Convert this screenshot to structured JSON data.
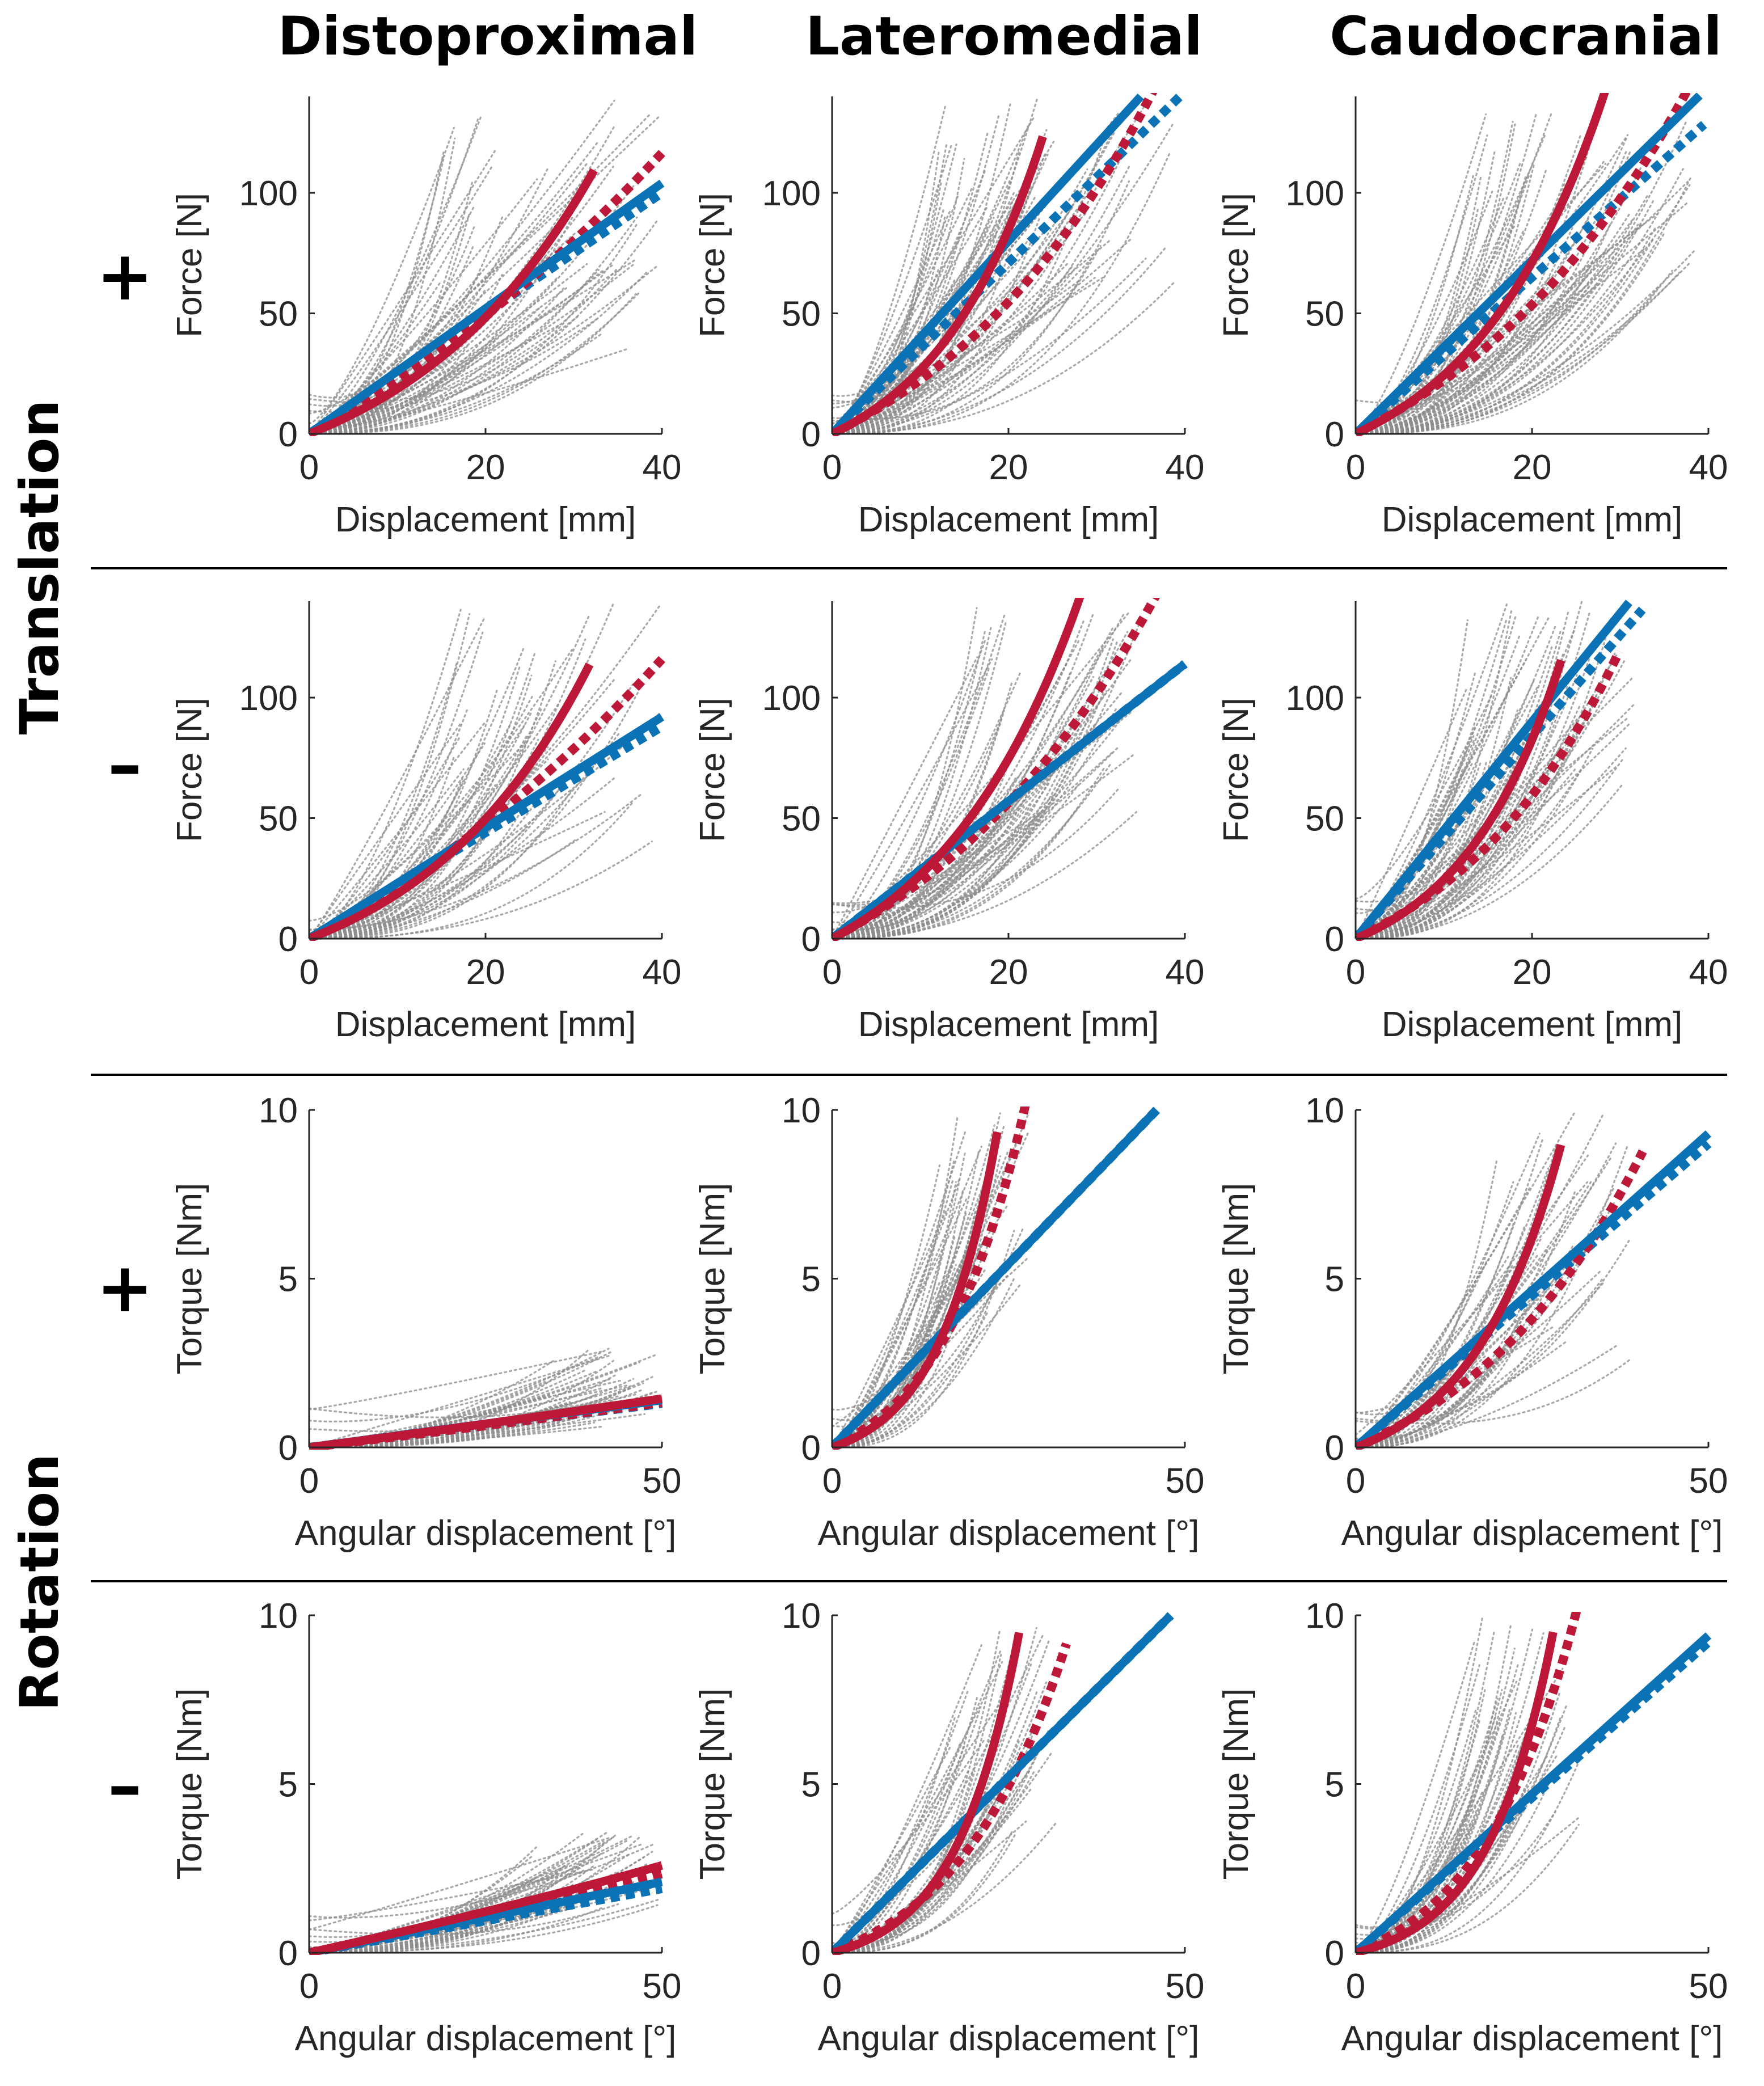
{
  "column_titles": [
    "Distoproximal",
    "Lateromedial",
    "Caudocranial"
  ],
  "row_group_titles": {
    "translation": "Translation",
    "rotation": "Rotation"
  },
  "row_signs": [
    "+",
    "–",
    "+",
    "–"
  ],
  "colors": {
    "samples": "#8c8c8c",
    "linear_fit": "#0a72b5",
    "exponential_fit": "#be1838",
    "axis": "#262626",
    "divider": "#000000"
  },
  "chart_data": [
    {
      "type": "line",
      "panel": "translation-plus-distoproximal",
      "xlabel": "Displacement [mm]",
      "ylabel": "Force [N]",
      "xlim": [
        0,
        40
      ],
      "ylim": [
        0,
        140
      ],
      "xticks": [
        0,
        20,
        40
      ],
      "yticks": [
        0,
        50,
        100
      ],
      "x_end": 40,
      "linear": {
        "solid": {
          "slope": 2.6,
          "x_max": 40
        },
        "dashed": {
          "slope": 2.5,
          "x_max": 40
        }
      },
      "exponential": {
        "solid": {
          "a": 32,
          "b": 0.046,
          "x_max": 32.3
        },
        "dashed": {
          "a": 130,
          "b": 0.016,
          "x_max": 40
        }
      },
      "samples": {
        "count": 60,
        "x_min": 14,
        "x_max": 40,
        "y_min": 35,
        "y_max": 140
      }
    },
    {
      "type": "line",
      "panel": "translation-plus-lateromedial",
      "xlabel": "Displacement [mm]",
      "ylabel": "Force [N]",
      "xlim": [
        0,
        40
      ],
      "ylim": [
        0,
        140
      ],
      "xticks": [
        0,
        20,
        40
      ],
      "yticks": [
        0,
        50,
        100
      ],
      "x_end": 40,
      "linear": {
        "solid": {
          "slope": 4.0,
          "x_max": 35
        },
        "dashed": {
          "slope": 3.55,
          "x_max": 39.5
        }
      },
      "exponential": {
        "solid": {
          "a": 22,
          "b": 0.079,
          "x_max": 23.9
        },
        "dashed": {
          "a": 50,
          "b": 0.037,
          "x_max": 37.3
        }
      },
      "samples": {
        "count": 70,
        "x_min": 12,
        "x_max": 39,
        "y_min": 60,
        "y_max": 140
      }
    },
    {
      "type": "line",
      "panel": "translation-plus-caudocranial",
      "xlabel": "Displacement [mm]",
      "ylabel": "Force [N]",
      "xlim": [
        0,
        40
      ],
      "ylim": [
        0,
        140
      ],
      "xticks": [
        0,
        20,
        40
      ],
      "yticks": [
        0,
        50,
        100
      ],
      "x_end": 40,
      "linear": {
        "solid": {
          "slope": 3.6,
          "x_max": 39
        },
        "dashed": {
          "slope": 3.25,
          "x_max": 39.5
        }
      },
      "exponential": {
        "solid": {
          "a": 26,
          "b": 0.066,
          "x_max": 29.9
        },
        "dashed": {
          "a": 55,
          "b": 0.034,
          "x_max": 38.9
        }
      },
      "samples": {
        "count": 70,
        "x_min": 13,
        "x_max": 39,
        "y_min": 60,
        "y_max": 140
      }
    },
    {
      "type": "line",
      "panel": "translation-minus-distoproximal",
      "xlabel": "Displacement [mm]",
      "ylabel": "Force [N]",
      "xlim": [
        0,
        40
      ],
      "ylim": [
        0,
        140
      ],
      "xticks": [
        0,
        20,
        40
      ],
      "yticks": [
        0,
        50,
        100
      ],
      "x_end": 40,
      "linear": {
        "solid": {
          "slope": 2.3,
          "x_max": 40
        },
        "dashed": {
          "slope": 2.2,
          "x_max": 40
        }
      },
      "exponential": {
        "solid": {
          "a": 28,
          "b": 0.051,
          "x_max": 31.8
        },
        "dashed": {
          "a": 110,
          "b": 0.018,
          "x_max": 40
        }
      },
      "samples": {
        "count": 55,
        "x_min": 16,
        "x_max": 40,
        "y_min": 40,
        "y_max": 140
      }
    },
    {
      "type": "line",
      "panel": "translation-minus-lateromedial",
      "xlabel": "Displacement [mm]",
      "ylabel": "Force [N]",
      "xlim": [
        0,
        40
      ],
      "ylim": [
        0,
        140
      ],
      "xticks": [
        0,
        20,
        40
      ],
      "yticks": [
        0,
        50,
        100
      ],
      "x_end": 40,
      "linear": {
        "solid": {
          "slope": 2.85,
          "x_max": 40
        },
        "dashed": {
          "slope": 2.85,
          "x_max": 40
        }
      },
      "exponential": {
        "solid": {
          "a": 32,
          "b": 0.0602,
          "x_max": 30.8
        },
        "dashed": {
          "a": 60,
          "b": 0.0331,
          "x_max": 37.3
        }
      },
      "samples": {
        "count": 60,
        "x_min": 16,
        "x_max": 35,
        "y_min": 50,
        "y_max": 140
      }
    },
    {
      "type": "line",
      "panel": "translation-minus-caudocranial",
      "xlabel": "Displacement [mm]",
      "ylabel": "Force [N]",
      "xlim": [
        0,
        40
      ],
      "ylim": [
        0,
        140
      ],
      "xticks": [
        0,
        20,
        40
      ],
      "yticks": [
        0,
        50,
        100
      ],
      "x_end": 40,
      "linear": {
        "solid": {
          "slope": 4.5,
          "x_max": 31
        },
        "dashed": {
          "slope": 4.2,
          "x_max": 32.5
        }
      },
      "exponential": {
        "solid": {
          "a": 18,
          "b": 0.086,
          "x_max": 23.3
        },
        "dashed": {
          "a": 35,
          "b": 0.0496,
          "x_max": 29.9
        }
      },
      "samples": {
        "count": 65,
        "x_min": 12,
        "x_max": 32,
        "y_min": 60,
        "y_max": 140
      }
    },
    {
      "type": "line",
      "panel": "rotation-plus-distoproximal",
      "xlabel": "Angular displacement [°]",
      "ylabel": "Torque [Nm]",
      "xlim": [
        0,
        50
      ],
      "ylim": [
        0,
        10
      ],
      "xticks": [
        0,
        50
      ],
      "yticks": [
        0,
        5,
        10
      ],
      "x_end": 50,
      "linear": {
        "solid": {
          "slope": 0.028,
          "x_max": 50
        },
        "dashed": {
          "slope": 0.026,
          "x_max": 50
        }
      },
      "exponential": {
        "solid": {
          "a": 10,
          "b": 0.0027,
          "x_max": 50
        },
        "dashed": {
          "a": 10,
          "b": 0.0025,
          "x_max": 50
        }
      },
      "samples": {
        "count": 45,
        "x_min": 30,
        "x_max": 50,
        "y_min": 0.6,
        "y_max": 3.0
      }
    },
    {
      "type": "line",
      "panel": "rotation-plus-lateromedial",
      "xlabel": "Angular displacement [°]",
      "ylabel": "Torque [Nm]",
      "xlim": [
        0,
        50
      ],
      "ylim": [
        0,
        10
      ],
      "xticks": [
        0,
        50
      ],
      "yticks": [
        0,
        5,
        10
      ],
      "x_end": 50,
      "linear": {
        "solid": {
          "slope": 0.2174,
          "x_max": 46
        },
        "dashed": {
          "slope": 0.2174,
          "x_max": 46
        }
      },
      "exponential": {
        "solid": {
          "a": 0.6,
          "b": 0.12,
          "x_max": 23.4
        },
        "dashed": {
          "a": 1.2,
          "b": 0.082,
          "x_max": 28.5
        }
      },
      "samples": {
        "count": 45,
        "x_min": 14,
        "x_max": 28,
        "y_min": 3.5,
        "y_max": 10
      }
    },
    {
      "type": "line",
      "panel": "rotation-plus-caudocranial",
      "xlabel": "Angular displacement [°]",
      "ylabel": "Torque [Nm]",
      "xlim": [
        0,
        50
      ],
      "ylim": [
        0,
        10
      ],
      "xticks": [
        0,
        50
      ],
      "yticks": [
        0,
        5,
        10
      ],
      "x_end": 50,
      "linear": {
        "solid": {
          "slope": 0.186,
          "x_max": 50
        },
        "dashed": {
          "slope": 0.18,
          "x_max": 50
        }
      },
      "exponential": {
        "solid": {
          "a": 1.0,
          "b": 0.079,
          "x_max": 29.1
        },
        "dashed": {
          "a": 2.5,
          "b": 0.037,
          "x_max": 40.7
        }
      },
      "samples": {
        "count": 45,
        "x_min": 18,
        "x_max": 40,
        "y_min": 2.5,
        "y_max": 10
      }
    },
    {
      "type": "line",
      "panel": "rotation-minus-distoproximal",
      "xlabel": "Angular displacement [°]",
      "ylabel": "Torque [Nm]",
      "xlim": [
        0,
        50
      ],
      "ylim": [
        0,
        10
      ],
      "xticks": [
        0,
        50
      ],
      "yticks": [
        0,
        5,
        10
      ],
      "x_end": 50,
      "linear": {
        "solid": {
          "slope": 0.042,
          "x_max": 50
        },
        "dashed": {
          "slope": 0.038,
          "x_max": 50
        }
      },
      "exponential": {
        "solid": {
          "a": 10,
          "b": 0.0046,
          "x_max": 50
        },
        "dashed": {
          "a": 10,
          "b": 0.0042,
          "x_max": 50
        }
      },
      "samples": {
        "count": 45,
        "x_min": 30,
        "x_max": 50,
        "y_min": 1.2,
        "y_max": 3.6
      }
    },
    {
      "type": "line",
      "panel": "rotation-minus-lateromedial",
      "xlabel": "Angular displacement [°]",
      "ylabel": "Torque [Nm]",
      "xlim": [
        0,
        50
      ],
      "ylim": [
        0,
        10
      ],
      "xticks": [
        0,
        50
      ],
      "yticks": [
        0,
        5,
        10
      ],
      "x_end": 50,
      "linear": {
        "solid": {
          "slope": 0.2083,
          "x_max": 48
        },
        "dashed": {
          "slope": 0.2083,
          "x_max": 48
        }
      },
      "exponential": {
        "solid": {
          "a": 0.5,
          "b": 0.113,
          "x_max": 26.5
        },
        "dashed": {
          "a": 1.3,
          "b": 0.0628,
          "x_max": 33.2
        }
      },
      "samples": {
        "count": 45,
        "x_min": 16,
        "x_max": 32,
        "y_min": 3.5,
        "y_max": 10
      }
    },
    {
      "type": "line",
      "panel": "rotation-minus-caudocranial",
      "xlabel": "Angular displacement [°]",
      "ylabel": "Torque [Nm]",
      "xlim": [
        0,
        50
      ],
      "ylim": [
        0,
        10
      ],
      "xticks": [
        0,
        50
      ],
      "yticks": [
        0,
        5,
        10
      ],
      "x_end": 50,
      "linear": {
        "solid": {
          "slope": 0.188,
          "x_max": 50
        },
        "dashed": {
          "slope": 0.184,
          "x_max": 50
        }
      },
      "exponential": {
        "solid": {
          "a": 0.5,
          "b": 0.107,
          "x_max": 28
        },
        "dashed": {
          "a": 1.2,
          "b": 0.0717,
          "x_max": 31.3
        }
      },
      "samples": {
        "count": 45,
        "x_min": 16,
        "x_max": 32,
        "y_min": 3.5,
        "y_max": 10
      }
    }
  ]
}
